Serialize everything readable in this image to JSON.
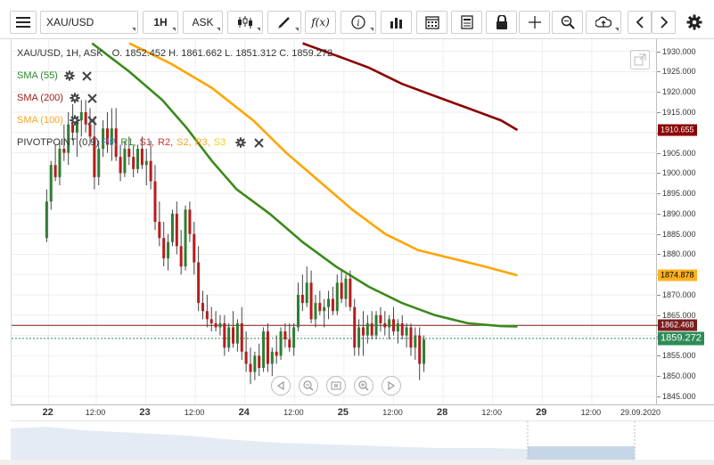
{
  "toolbar": {
    "symbol": "XAU/USD",
    "interval": "1H",
    "price_side": "ASK",
    "icons": [
      "menu-icon",
      "candles-icon",
      "draw-icon",
      "function-icon",
      "info-icon",
      "volume-icon",
      "calendar-icon",
      "notes-icon",
      "lock-icon",
      "crosshair-icon",
      "zoom-icon",
      "upload-icon",
      "chevron-left-icon",
      "chevron-right-icon",
      "gear-icon"
    ]
  },
  "legend": {
    "header": "XAU/USD, 1H, ASK",
    "ohlc": {
      "o": "O. 1852.452",
      "h": "H. 1861.662",
      "l": "L. 1851.312",
      "c": "C. 1859.272"
    },
    "sma55": "SMA (55)",
    "sma200": "SMA (200)",
    "sma100": "SMA (100)",
    "pivot": "PIVOTPOINT (0,9)",
    "pivot_parts": [
      {
        "text": "PP,",
        "color": "#4a90e2"
      },
      {
        "text": "R1,",
        "color": "#2e8b2e"
      },
      {
        "text": "S1,",
        "color": "#d22b2b"
      },
      {
        "text": "R2,",
        "color": "#d22b2b"
      },
      {
        "text": "S2,",
        "color": "#f5a623"
      },
      {
        "text": "R3,",
        "color": "#f5a623"
      },
      {
        "text": "S3",
        "color": "#e6d600"
      }
    ]
  },
  "price_tags": [
    {
      "label": "1910.655",
      "value": 1910.655,
      "bg": "#8b0000",
      "fg": "#ffffff"
    },
    {
      "label": "1874.878",
      "value": 1874.878,
      "bg": "#ffb21e",
      "fg": "#000000"
    },
    {
      "label": "1862.468",
      "value": 1862.468,
      "bg": "#7a1d1d",
      "fg": "#ffffff"
    },
    {
      "label": "1859.272",
      "value": 1859.272,
      "bg": "#2e8b57",
      "fg": "#ffffff"
    }
  ],
  "chart_data": {
    "type": "candlestick",
    "ylim": [
      1843,
      1933
    ],
    "y_ticks": [
      "1930.000",
      "1925.000",
      "1920.000",
      "1915.000",
      "1910.000",
      "1905.000",
      "1900.000",
      "1895.000",
      "1890.000",
      "1885.000",
      "1880.000",
      "1875.000",
      "1870.000",
      "1865.000",
      "1860.000",
      "1855.000",
      "1850.000",
      "1845.000"
    ],
    "x_ticks": [
      {
        "label": "22",
        "day": true,
        "x": 0.5
      },
      {
        "label": "12:00",
        "x": 12
      },
      {
        "label": "23",
        "day": true,
        "x": 24
      },
      {
        "label": "12:00",
        "x": 36
      },
      {
        "label": "24",
        "day": true,
        "x": 48
      },
      {
        "label": "12:00",
        "x": 60
      },
      {
        "label": "25",
        "day": true,
        "x": 72
      },
      {
        "label": "12:00",
        "x": 84
      },
      {
        "label": "28",
        "day": true,
        "x": 96
      },
      {
        "label": "12:00",
        "x": 108
      },
      {
        "label": "29",
        "day": true,
        "x": 120
      },
      {
        "label": "12:00",
        "x": 132
      },
      {
        "label": "29.09.2020",
        "x": 144
      }
    ],
    "x_range": [
      -8.5,
      148
    ],
    "candles": [
      [
        1884,
        1896,
        1883,
        1893
      ],
      [
        1893,
        1903,
        1891,
        1902
      ],
      [
        1902,
        1907,
        1898,
        1899
      ],
      [
        1899,
        1908,
        1897,
        1906
      ],
      [
        1906,
        1912,
        1903,
        1905
      ],
      [
        1905,
        1915,
        1902,
        1912
      ],
      [
        1912,
        1917,
        1908,
        1910
      ],
      [
        1910,
        1914,
        1904,
        1913
      ],
      [
        1913,
        1918,
        1909,
        1915
      ],
      [
        1915,
        1918,
        1910,
        1912
      ],
      [
        1912,
        1916,
        1907,
        1909
      ],
      [
        1909,
        1914,
        1896,
        1899
      ],
      [
        1899,
        1908,
        1897,
        1906
      ],
      [
        1906,
        1913,
        1904,
        1911
      ],
      [
        1911,
        1915,
        1905,
        1907
      ],
      [
        1907,
        1916,
        1903,
        1911
      ],
      [
        1911,
        1916,
        1903,
        1904
      ],
      [
        1904,
        1907,
        1898,
        1900
      ],
      [
        1900,
        1908,
        1899,
        1906
      ],
      [
        1906,
        1909,
        1902,
        1904
      ],
      [
        1904,
        1907,
        1899,
        1901
      ],
      [
        1901,
        1907,
        1900,
        1906
      ],
      [
        1906,
        1909,
        1901,
        1902
      ],
      [
        1902,
        1906,
        1897,
        1903
      ],
      [
        1903,
        1908,
        1896,
        1898
      ],
      [
        1898,
        1902,
        1886,
        1888
      ],
      [
        1888,
        1893,
        1882,
        1884
      ],
      [
        1884,
        1888,
        1877,
        1879
      ],
      [
        1879,
        1885,
        1876,
        1883
      ],
      [
        1883,
        1891,
        1882,
        1890
      ],
      [
        1890,
        1893,
        1880,
        1882
      ],
      [
        1882,
        1886,
        1875,
        1877
      ],
      [
        1877,
        1892,
        1876,
        1891
      ],
      [
        1891,
        1893,
        1883,
        1885
      ],
      [
        1885,
        1888,
        1875,
        1878
      ],
      [
        1878,
        1882,
        1866,
        1868
      ],
      [
        1868,
        1871,
        1864,
        1866
      ],
      [
        1866,
        1870,
        1862,
        1864
      ],
      [
        1864,
        1867,
        1861,
        1863
      ],
      [
        1863,
        1866,
        1861,
        1862
      ],
      [
        1862,
        1865,
        1860,
        1863
      ],
      [
        1863,
        1865,
        1855,
        1857
      ],
      [
        1857,
        1863,
        1856,
        1862
      ],
      [
        1862,
        1866,
        1857,
        1858
      ],
      [
        1858,
        1864,
        1856,
        1863
      ],
      [
        1863,
        1867,
        1854,
        1856
      ],
      [
        1856,
        1861,
        1851,
        1853
      ],
      [
        1853,
        1857,
        1848,
        1851
      ],
      [
        1851,
        1856,
        1849,
        1855
      ],
      [
        1855,
        1858,
        1850,
        1852
      ],
      [
        1852,
        1862,
        1851,
        1861
      ],
      [
        1861,
        1863,
        1851,
        1853
      ],
      [
        1853,
        1857,
        1850,
        1856
      ],
      [
        1856,
        1860,
        1853,
        1855
      ],
      [
        1855,
        1862,
        1854,
        1861
      ],
      [
        1861,
        1863,
        1857,
        1859
      ],
      [
        1859,
        1863,
        1856,
        1857
      ],
      [
        1857,
        1863,
        1855,
        1862
      ],
      [
        1862,
        1873,
        1861,
        1870
      ],
      [
        1870,
        1875,
        1866,
        1868
      ],
      [
        1868,
        1877,
        1867,
        1873
      ],
      [
        1873,
        1876,
        1863,
        1864
      ],
      [
        1864,
        1870,
        1862,
        1868
      ],
      [
        1868,
        1871,
        1865,
        1866
      ],
      [
        1866,
        1869,
        1862,
        1867
      ],
      [
        1867,
        1871,
        1864,
        1869
      ],
      [
        1869,
        1872,
        1865,
        1866
      ],
      [
        1866,
        1875,
        1865,
        1873
      ],
      [
        1873,
        1876,
        1868,
        1869
      ],
      [
        1869,
        1875,
        1867,
        1874
      ],
      [
        1874,
        1876,
        1866,
        1867
      ],
      [
        1867,
        1869,
        1855,
        1857
      ],
      [
        1857,
        1864,
        1855,
        1862
      ],
      [
        1862,
        1866,
        1855,
        1860
      ],
      [
        1860,
        1865,
        1858,
        1863
      ],
      [
        1863,
        1866,
        1859,
        1860
      ],
      [
        1860,
        1866,
        1859,
        1865
      ],
      [
        1865,
        1867,
        1861,
        1863
      ],
      [
        1863,
        1866,
        1860,
        1862
      ],
      [
        1862,
        1865,
        1859,
        1864
      ],
      [
        1864,
        1867,
        1860,
        1861
      ],
      [
        1861,
        1864,
        1858,
        1863
      ],
      [
        1863,
        1865,
        1859,
        1860
      ],
      [
        1860,
        1863,
        1857,
        1862
      ],
      [
        1862,
        1863,
        1855,
        1857
      ],
      [
        1857,
        1862,
        1854,
        1860
      ],
      [
        1860,
        1862,
        1849,
        1853
      ],
      [
        1853,
        1860,
        1851,
        1859
      ]
    ],
    "candle_x_start": 0,
    "candle_x_step": 1.05,
    "horizontal_lines": [
      {
        "value": 1862.468,
        "color": "#7a1d1d",
        "dash": false
      },
      {
        "value": 1859.272,
        "color": "#2e8b57",
        "dash": true
      }
    ],
    "series": [
      {
        "name": "SMA (55)",
        "color": "#3a8a1a",
        "points": [
          [
            11,
            1932
          ],
          [
            20,
            1925
          ],
          [
            28,
            1918
          ],
          [
            34,
            1911
          ],
          [
            40,
            1903
          ],
          [
            46,
            1896
          ],
          [
            54,
            1890
          ],
          [
            62,
            1883
          ],
          [
            70,
            1877
          ],
          [
            78,
            1872
          ],
          [
            86,
            1868
          ],
          [
            94,
            1865
          ],
          [
            102,
            1863
          ],
          [
            110,
            1862.3
          ],
          [
            114,
            1862.2
          ]
        ]
      },
      {
        "name": "SMA (100)",
        "color": "#ffa500",
        "points": [
          [
            20,
            1932
          ],
          [
            30,
            1927
          ],
          [
            40,
            1921
          ],
          [
            50,
            1913
          ],
          [
            58,
            1905
          ],
          [
            66,
            1898
          ],
          [
            74,
            1891
          ],
          [
            82,
            1885
          ],
          [
            90,
            1881
          ],
          [
            98,
            1879
          ],
          [
            106,
            1877
          ],
          [
            114,
            1874.8
          ]
        ]
      },
      {
        "name": "SMA (200)",
        "color": "#8b0000",
        "points": [
          [
            62,
            1932
          ],
          [
            70,
            1929
          ],
          [
            78,
            1926
          ],
          [
            86,
            1922
          ],
          [
            94,
            1919
          ],
          [
            102,
            1916
          ],
          [
            110,
            1913
          ],
          [
            114,
            1910.6
          ]
        ]
      }
    ]
  }
}
